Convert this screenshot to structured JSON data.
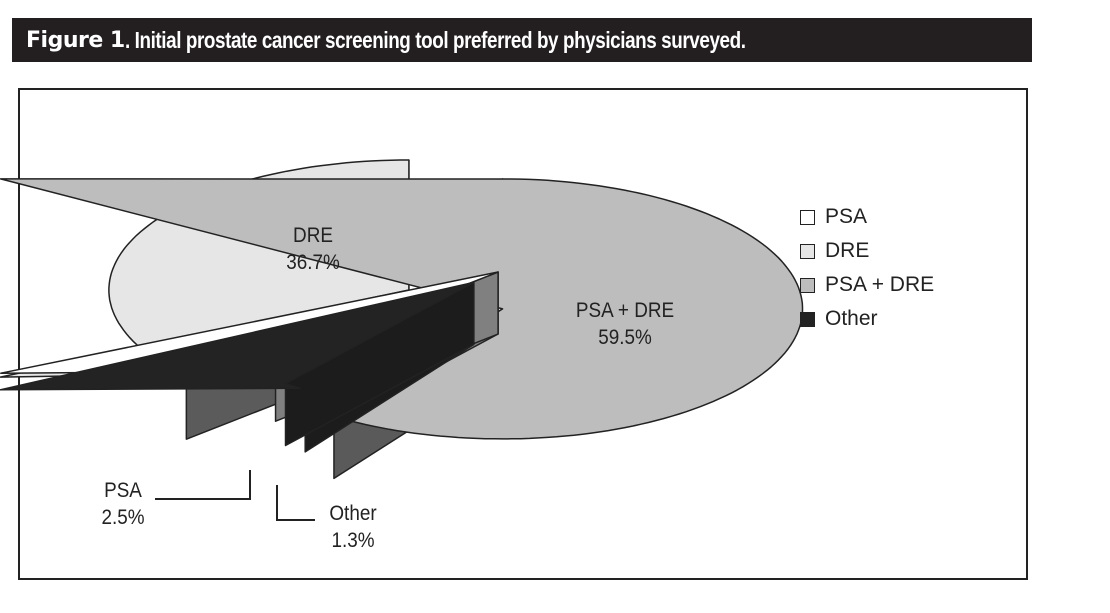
{
  "figure_label": "Figure 1",
  "title": ". Initial prostate cancer screening tool preferred by physicians surveyed.",
  "chart_data": {
    "type": "pie",
    "style": "3d-exploded",
    "title": "Initial prostate cancer screening tool preferred by physicians surveyed.",
    "categories": [
      "PSA + DRE",
      "Other",
      "PSA",
      "DRE"
    ],
    "values": [
      59.5,
      1.3,
      2.5,
      36.7
    ],
    "value_labels": [
      "59.5%",
      "1.3%",
      "2.5%",
      "36.7%"
    ],
    "colors": {
      "PSA": "#ffffff",
      "DRE": "#e6e6e6",
      "PSA + DRE": "#bdbdbd",
      "Other": "#232323"
    },
    "side_colors": {
      "PSA": "#808080",
      "DRE": "#5b5b5b",
      "PSA + DRE": "#5a5a5a",
      "Other": "#1c1c1c"
    },
    "legend": {
      "position": "right",
      "entries": [
        "PSA",
        "DRE",
        "PSA + DRE",
        "Other"
      ]
    }
  }
}
